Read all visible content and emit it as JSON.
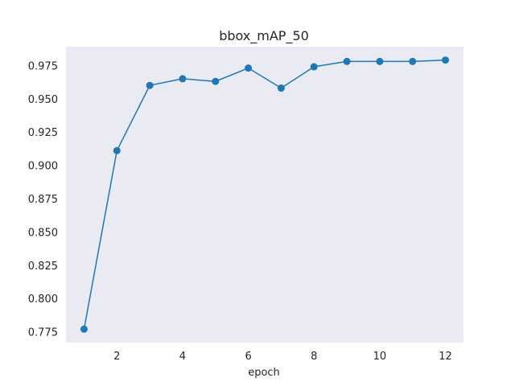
{
  "chart_data": {
    "type": "line",
    "title": "bbox_mAP_50",
    "xlabel": "epoch",
    "ylabel": "",
    "x": [
      1,
      2,
      3,
      4,
      5,
      6,
      7,
      8,
      9,
      10,
      11,
      12
    ],
    "series": [
      {
        "values": [
          0.777,
          0.911,
          0.96,
          0.965,
          0.963,
          0.973,
          0.958,
          0.974,
          0.978,
          0.978,
          0.978,
          0.979
        ]
      }
    ],
    "xticks": [
      2,
      4,
      6,
      8,
      10,
      12
    ],
    "xtick_labels": [
      "2",
      "4",
      "6",
      "8",
      "10",
      "12"
    ],
    "yticks": [
      0.775,
      0.8,
      0.825,
      0.85,
      0.875,
      0.9,
      0.925,
      0.95,
      0.975
    ],
    "ytick_labels": [
      "0.775",
      "0.800",
      "0.825",
      "0.850",
      "0.875",
      "0.900",
      "0.925",
      "0.950",
      "0.975"
    ],
    "xlim": [
      0.45,
      12.55
    ],
    "ylim": [
      0.7669,
      0.9891
    ],
    "grid": false,
    "background_color": "#eaeaf2",
    "line_color": "#1f77b4"
  }
}
